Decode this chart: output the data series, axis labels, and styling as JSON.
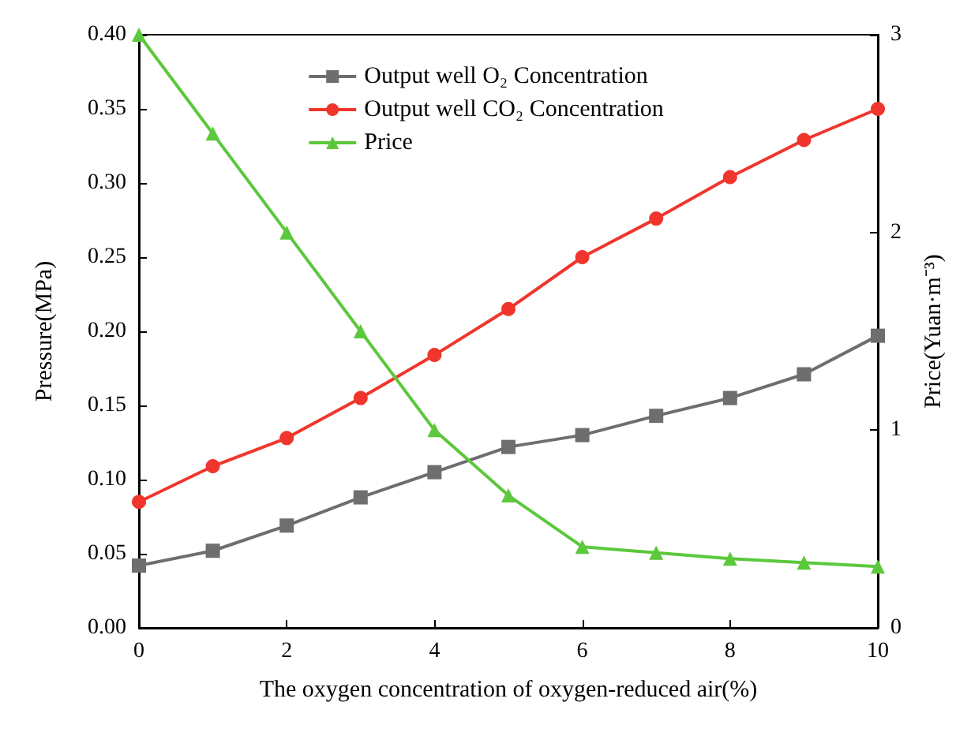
{
  "chart_data": {
    "type": "line",
    "xlabel": "The oxygen concentration of oxygen-reduced air(%)",
    "ylabel": "Pressure(MPa)",
    "y2label": "Price(Yuan·m⁻³)",
    "x": [
      0,
      1,
      2,
      3,
      4,
      5,
      6,
      7,
      8,
      9,
      10
    ],
    "series": [
      {
        "name": "Output well O₂ Concentration",
        "color": "#6e6e6e",
        "marker": "square",
        "values": [
          0.042,
          0.052,
          0.069,
          0.088,
          0.105,
          0.122,
          0.13,
          0.143,
          0.155,
          0.171,
          0.197
        ]
      },
      {
        "name": "Output well CO₂ Concentration",
        "color": "#f0362c",
        "marker": "circle",
        "values": [
          0.085,
          0.109,
          0.128,
          0.155,
          0.184,
          0.215,
          0.25,
          0.276,
          0.304,
          0.329,
          0.35
        ]
      },
      {
        "name": "Price",
        "color": "#5cc83c",
        "marker": "triangle",
        "axis": "y2",
        "values": [
          3.0,
          2.5,
          2.0,
          1.5,
          1.0,
          0.67,
          0.41,
          0.38,
          0.35,
          0.33,
          0.31
        ]
      }
    ],
    "xlim": [
      0,
      10
    ],
    "xticks": [
      0,
      2,
      4,
      6,
      8,
      10
    ],
    "ylim": [
      0,
      0.4
    ],
    "yticks": [
      {
        "value": 0,
        "label": "0.00"
      },
      {
        "value": 0.05,
        "label": "0.05"
      },
      {
        "value": 0.1,
        "label": "0.10"
      },
      {
        "value": 0.15,
        "label": "0.15"
      },
      {
        "value": 0.2,
        "label": "0.20"
      },
      {
        "value": 0.25,
        "label": "0.25"
      },
      {
        "value": 0.3,
        "label": "0.30"
      },
      {
        "value": 0.35,
        "label": "0.35"
      },
      {
        "value": 0.4,
        "label": "0.40"
      }
    ],
    "y2lim": [
      0,
      3
    ],
    "y2ticks": [
      0,
      1,
      2,
      3
    ],
    "grid": false,
    "legend": "top",
    "line_style": "solid"
  }
}
